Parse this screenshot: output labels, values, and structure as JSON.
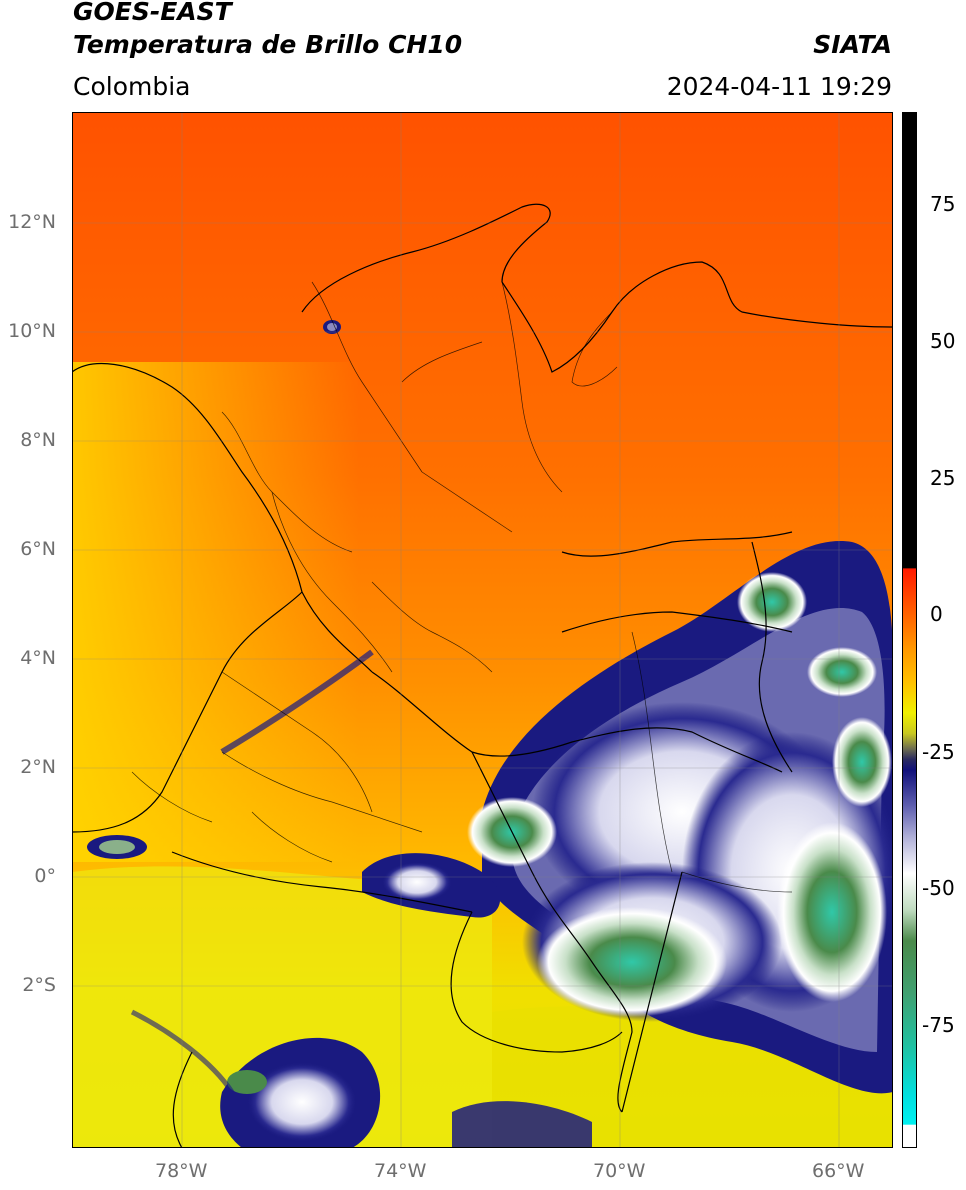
{
  "header": {
    "satellite": "GOES-EAST",
    "product": "Temperatura de Brillo CH10",
    "region": "Colombia",
    "agency": "SIATA",
    "datetime": "2024-04-11 19:29"
  },
  "axes": {
    "lon_ticks": [
      "78°W",
      "74°W",
      "70°W",
      "66°W"
    ],
    "lat_ticks": [
      "12°N",
      "10°N",
      "8°N",
      "6°N",
      "4°N",
      "2°N",
      "0°",
      "2°S"
    ]
  },
  "colorbar": {
    "ticks": [
      "75",
      "50",
      "25",
      "0",
      "-25",
      "-50",
      "-75"
    ]
  },
  "colors": {
    "warm_dark": "#ff4a00",
    "warm": "#ff7a00",
    "orange": "#ff9a00",
    "yellow": "#f0f000",
    "olive": "#c8c820",
    "navy": "#1a1a80",
    "white": "#ffffff",
    "green": "#4a8a4a",
    "teal": "#20c0a0",
    "black": "#000000"
  }
}
